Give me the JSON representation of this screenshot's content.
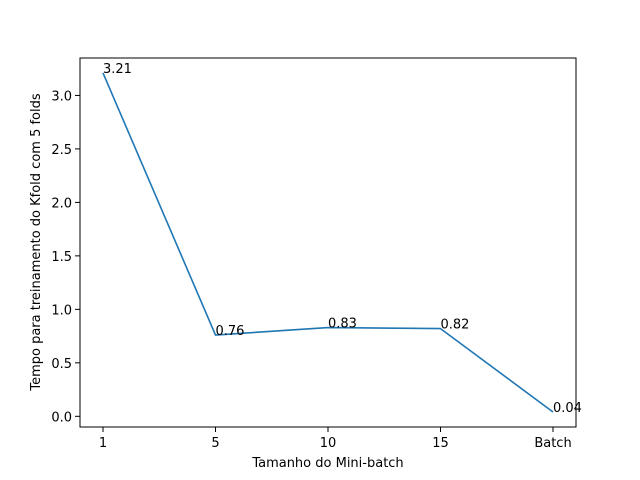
{
  "chart_data": {
    "type": "line",
    "title": "",
    "xlabel": "Tamanho do Mini-batch",
    "ylabel": "Tempo para treinamento do Kfold com 5 folds",
    "categories": [
      "1",
      "5",
      "10",
      "15",
      "Batch"
    ],
    "series": [
      {
        "values": [
          3.21,
          0.76,
          0.83,
          0.82,
          0.04
        ],
        "labels": [
          "3.21",
          "0.76",
          "0.83",
          "0.82",
          "0.04"
        ],
        "color": "#1f77b4"
      }
    ],
    "ylim": [
      -0.1,
      3.35
    ],
    "yticks": [
      0.0,
      0.5,
      1.0,
      1.5,
      2.0,
      2.5,
      3.0
    ],
    "ytick_labels": [
      "0.0",
      "0.5",
      "1.0",
      "1.5",
      "2.0",
      "2.5",
      "3.0"
    ],
    "grid": false,
    "legend": "none"
  }
}
